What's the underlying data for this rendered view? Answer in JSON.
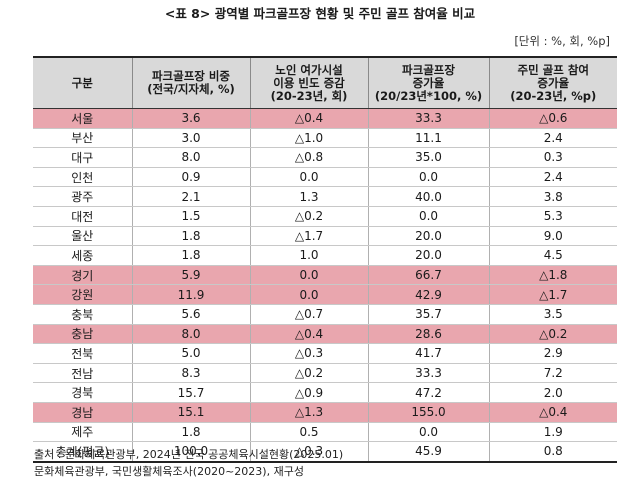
{
  "title": "<표 8> 광역별 파크골프장 현황 및 주민 골프 참여율 비교",
  "unit": "[단위 : %, 회, %p]",
  "table": {
    "headers": [
      [
        "구분"
      ],
      [
        "파크골프장 비중",
        "(전국/지자체, %)"
      ],
      [
        "노인 여가시설",
        "이용 빈도 증감",
        "(20-23년, 회)"
      ],
      [
        "파크골프장",
        "증가율",
        "(20/23년*100, %)"
      ],
      [
        "주민 골프 참여",
        "증가율",
        "(20-23년, %p)"
      ]
    ],
    "rows": [
      {
        "cells": [
          "서울",
          "3.6",
          "△0.4",
          "33.3",
          "△0.6"
        ],
        "highlight": true
      },
      {
        "cells": [
          "부산",
          "3.0",
          "△1.0",
          "11.1",
          "2.4"
        ],
        "highlight": false
      },
      {
        "cells": [
          "대구",
          "8.0",
          "△0.8",
          "35.0",
          "0.3"
        ],
        "highlight": false
      },
      {
        "cells": [
          "인천",
          "0.9",
          "0.0",
          "0.0",
          "2.4"
        ],
        "highlight": false
      },
      {
        "cells": [
          "광주",
          "2.1",
          "1.3",
          "40.0",
          "3.8"
        ],
        "highlight": false
      },
      {
        "cells": [
          "대전",
          "1.5",
          "△0.2",
          "0.0",
          "5.3"
        ],
        "highlight": false
      },
      {
        "cells": [
          "울산",
          "1.8",
          "△1.7",
          "20.0",
          "9.0"
        ],
        "highlight": false
      },
      {
        "cells": [
          "세종",
          "1.8",
          "1.0",
          "20.0",
          "4.5"
        ],
        "highlight": false
      },
      {
        "cells": [
          "경기",
          "5.9",
          "0.0",
          "66.7",
          "△1.8"
        ],
        "highlight": true
      },
      {
        "cells": [
          "강원",
          "11.9",
          "0.0",
          "42.9",
          "△1.7"
        ],
        "highlight": true
      },
      {
        "cells": [
          "충북",
          "5.6",
          "△0.7",
          "35.7",
          "3.5"
        ],
        "highlight": false
      },
      {
        "cells": [
          "충남",
          "8.0",
          "△0.4",
          "28.6",
          "△0.2"
        ],
        "highlight": true
      },
      {
        "cells": [
          "전북",
          "5.0",
          "△0.3",
          "41.7",
          "2.9"
        ],
        "highlight": false
      },
      {
        "cells": [
          "전남",
          "8.3",
          "△0.2",
          "33.3",
          "7.2"
        ],
        "highlight": false
      },
      {
        "cells": [
          "경북",
          "15.7",
          "△0.9",
          "47.2",
          "2.0"
        ],
        "highlight": false
      },
      {
        "cells": [
          "경남",
          "15.1",
          "△1.3",
          "155.0",
          "△0.4"
        ],
        "highlight": true
      },
      {
        "cells": [
          "제주",
          "1.8",
          "0.5",
          "0.0",
          "1.9"
        ],
        "highlight": false
      },
      {
        "cells": [
          "총계(평균)",
          "100.0",
          "△0.3",
          "45.9",
          "0.8"
        ],
        "highlight": false
      }
    ]
  },
  "sources": [
    "출처 : 문화체육관광부, 2024년 전국 공공체육시설현황(2025.01)",
    "문화체육관광부, 국민생활체육조사(2020~2023), 재구성"
  ],
  "colors": {
    "highlight_row": "#e9a6ae",
    "header_bg": "#d9d9d9"
  }
}
